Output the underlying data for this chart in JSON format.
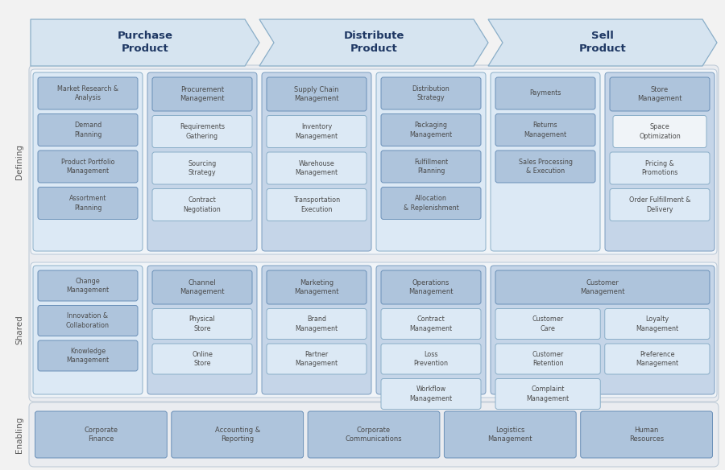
{
  "fig_w": 9.0,
  "fig_h": 5.84,
  "bg_color": "#f2f2f2",
  "panel_fill": "#ececec",
  "panel_edge": "#b8c8d8",
  "arrow_fill": "#d6e4f0",
  "arrow_edge": "#8aaec8",
  "grp_fill": "#c5d5e8",
  "grp_edge": "#7a9cbf",
  "grp_light_fill": "#dce9f5",
  "grp_light_edge": "#8aaec8",
  "box_dark_fill": "#aec4dc",
  "box_dark_edge": "#6a90b8",
  "box_mid_fill": "#c8d9eb",
  "box_mid_edge": "#8aaec8",
  "box_light_fill": "#dce9f5",
  "box_light_edge": "#8aaec8",
  "box_white_fill": "#f0f4f8",
  "box_white_edge": "#8aaec8",
  "text_color": "#4a4a4a",
  "arrow_text_color": "#1f3864",
  "row_label_color": "#5a5a5a",
  "arrow_labels": [
    "Purchase\nProduct",
    "Distribute\nProduct",
    "Sell\nProduct"
  ],
  "enabling_boxes": [
    "Corporate\nFinance",
    "Accounting &\nReporting",
    "Corporate\nCommunications",
    "Logistics\nManagement",
    "Human\nResources"
  ]
}
